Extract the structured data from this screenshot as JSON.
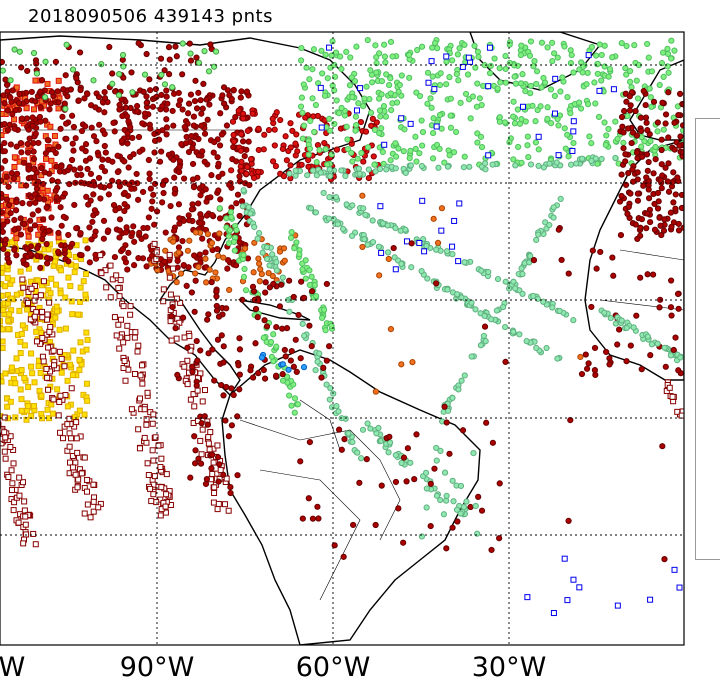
{
  "title": "2018090506 439143 pnts",
  "axis": {
    "lon_labels": [
      "W",
      "90°W",
      "60°W",
      "30°W"
    ]
  },
  "colors": {
    "dark_red": "#aa0000",
    "red": "#dd1111",
    "orange": "#f07020",
    "yellow": "#ffe000",
    "light_green": "#7fef7f",
    "aqua_green": "#8fe8b0",
    "blue": "#0000ee",
    "light_blue": "#30a0ff",
    "coast": "#000000",
    "grid": "#000000"
  }
}
